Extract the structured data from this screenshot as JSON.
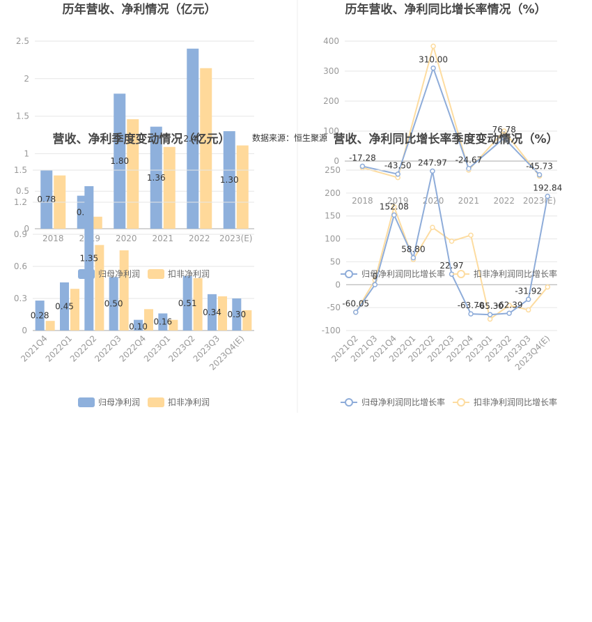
{
  "source_text": "数据来源：恒生聚源",
  "legend_bar": [
    "归母净利润",
    "扣非净利润"
  ],
  "legend_line": [
    "归母净利润同比增长率",
    "扣非净利润同比增长率"
  ],
  "colors": {
    "blue": "#8eb0dc",
    "orange": "#ffd99a",
    "blue_line": "#8eacd9",
    "orange_line": "#fddca0",
    "grid": "#e6e6e6",
    "axis": "#aaaaaa"
  },
  "chart_data": [
    {
      "id": "annual_profit",
      "type": "bar",
      "title": "历年营收、净利情况（亿元）",
      "categories": [
        "2018",
        "2019",
        "2020",
        "2021",
        "2022",
        "2023(E)"
      ],
      "series": [
        {
          "name": "归母净利润",
          "values": [
            0.78,
            0.44,
            1.8,
            1.36,
            2.4,
            1.3
          ]
        },
        {
          "name": "扣非净利润",
          "values": [
            0.71,
            0.16,
            1.46,
            1.09,
            2.14,
            1.11
          ]
        }
      ],
      "data_labels": [
        "0.78",
        "0.4",
        "1.80",
        "1.36",
        "2.40",
        "1.30"
      ],
      "yticks": [
        "0",
        "0.5",
        "1",
        "1.5",
        "2",
        "2.5"
      ],
      "ylim": [
        0,
        2.5
      ],
      "grid": true,
      "legend": "bottom"
    },
    {
      "id": "annual_growth",
      "type": "line",
      "title": "历年营收、净利同比增长率情况（%）",
      "categories": [
        "2018",
        "2019",
        "2020",
        "2021",
        "2022",
        "2023(E)"
      ],
      "series": [
        {
          "name": "归母净利润同比增长率",
          "values": [
            -17.28,
            -43.5,
            310.0,
            -24.67,
            76.78,
            -45.73
          ]
        },
        {
          "name": "扣非净利润同比增长率",
          "values": [
            -22,
            -55,
            383,
            -30,
            100,
            -50
          ]
        }
      ],
      "data_labels": [
        "-17.28",
        "-43.50",
        "310.00",
        "-24.67",
        "76.78",
        "-45.73"
      ],
      "yticks": [
        "0",
        "100",
        "200",
        "300",
        "400"
      ],
      "ylim": [
        -100,
        400
      ],
      "grid": true,
      "legend": "bottom"
    },
    {
      "id": "quarterly_profit",
      "type": "bar",
      "title": "营收、净利季度变动情况（亿元）",
      "categories": [
        "2021Q4",
        "2022Q1",
        "2022Q2",
        "2022Q3",
        "2022Q4",
        "2023Q1",
        "2023Q2",
        "2023Q3",
        "2023Q4(E)"
      ],
      "series": [
        {
          "name": "归母净利润",
          "values": [
            0.28,
            0.45,
            1.35,
            0.5,
            0.1,
            0.16,
            0.51,
            0.34,
            0.3
          ]
        },
        {
          "name": "扣非净利润",
          "values": [
            0.09,
            0.39,
            0.8,
            0.75,
            0.2,
            0.1,
            0.49,
            0.32,
            0.19
          ]
        }
      ],
      "data_labels": [
        "0.28",
        "0.45",
        "1.35",
        "0.50",
        "0.10",
        "0.16",
        "0.51",
        "0.34",
        "0.30"
      ],
      "yticks": [
        "0",
        "0.3",
        "0.6",
        "0.9",
        "1.2",
        "1.5"
      ],
      "ylim": [
        0,
        1.5
      ],
      "grid": true,
      "legend": "bottom"
    },
    {
      "id": "quarterly_growth",
      "type": "line",
      "title": "营收、净利同比增长率季度变动情况（%）",
      "categories": [
        "2021Q2",
        "2021Q3",
        "2021Q4",
        "2022Q1",
        "2022Q2",
        "2022Q3",
        "2022Q4",
        "2023Q1",
        "2023Q2",
        "2023Q3",
        "2023Q4(E)"
      ],
      "series": [
        {
          "name": "归母净利润同比增长率",
          "values": [
            -60.05,
            0,
            152.08,
            58.8,
            247.97,
            22.97,
            -63.7,
            -65.3,
            -62.39,
            -31.92,
            192.84
          ]
        },
        {
          "name": "扣非净利润同比增长率",
          "values": [
            -60,
            10,
            170,
            55,
            125,
            95,
            108,
            -75,
            -45,
            -55,
            -5
          ]
        }
      ],
      "data_labels": [
        "-60.05",
        "0",
        "152.08",
        "58.80",
        "247.97",
        "22.97",
        "-63.70",
        "-65.30",
        "-62.39",
        "-31.92",
        "192.84"
      ],
      "yticks": [
        "-100",
        "-50",
        "0",
        "50",
        "100",
        "150",
        "200",
        "250"
      ],
      "ylim": [
        -100,
        250
      ],
      "grid": true,
      "legend": "bottom"
    }
  ]
}
